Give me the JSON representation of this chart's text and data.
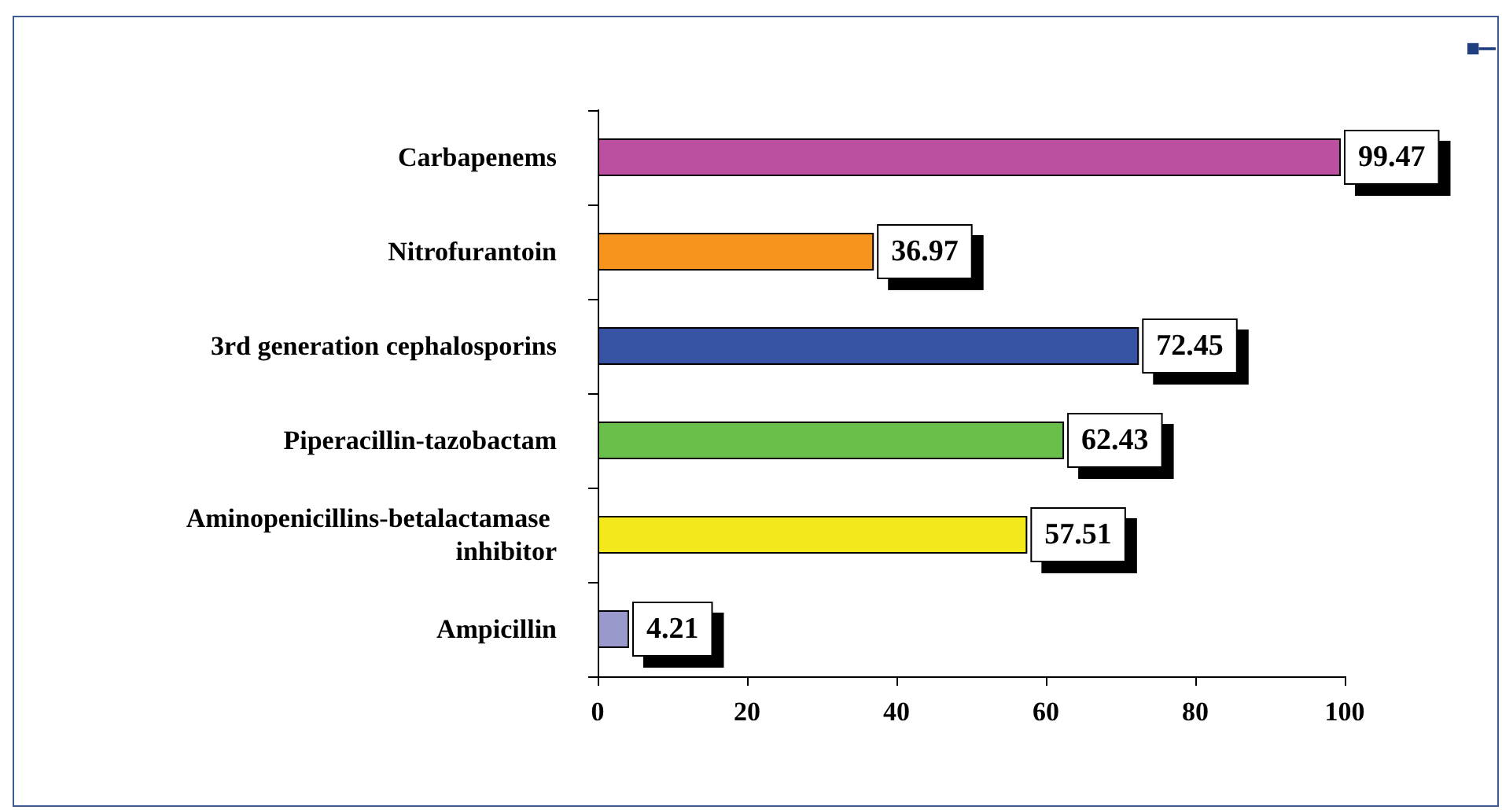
{
  "chart_data": {
    "type": "bar",
    "orientation": "horizontal",
    "categories": [
      "Carbapenems",
      "Nitrofurantoin",
      "3rd generation cephalosporins",
      "Piperacillin-tazobactam",
      "Aminopenicillins-betalactamase inhibitor",
      "Ampicillin"
    ],
    "values": [
      99.47,
      36.97,
      72.45,
      62.43,
      57.51,
      4.21
    ],
    "colors": [
      "#bb4fa0",
      "#f7941d",
      "#3953a4",
      "#6abf4b",
      "#f2e81a",
      "#9999cc"
    ],
    "xlim": [
      0,
      100
    ],
    "xticks": [
      0,
      20,
      40,
      60,
      80,
      100
    ],
    "grid": false,
    "data_labels": true
  }
}
